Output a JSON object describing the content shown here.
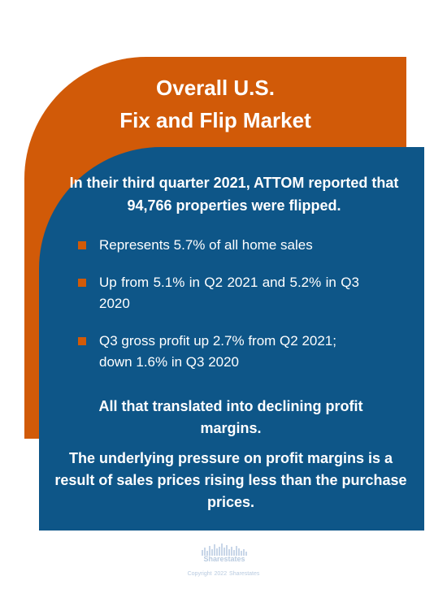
{
  "title": {
    "line1": "Overall U.S.",
    "line2": "Fix and Flip Market"
  },
  "intro": "In their third quarter 2021, ATTOM reported that 94,766 properties were flipped.",
  "bullets": [
    "Represents 5.7% of all home sales",
    "Up from 5.1% in Q2 2021 and 5.2% in Q3 2020",
    "Q3 gross profit up 2.7% from Q2 2021; down 1.6% in Q3 2020"
  ],
  "summary": {
    "line1": "All that translated into declining profit margins.",
    "line2": "The underlying pressure on profit margins is a result of sales prices rising less than the purchase prices."
  },
  "footer": {
    "logo_text": "Sharestates",
    "copyright": "Copyright   2022 Sharestates"
  },
  "colors": {
    "orange": "#d15a08",
    "blue": "#0e5688",
    "text": "#ffffff",
    "footer": "#b9cbe0"
  }
}
